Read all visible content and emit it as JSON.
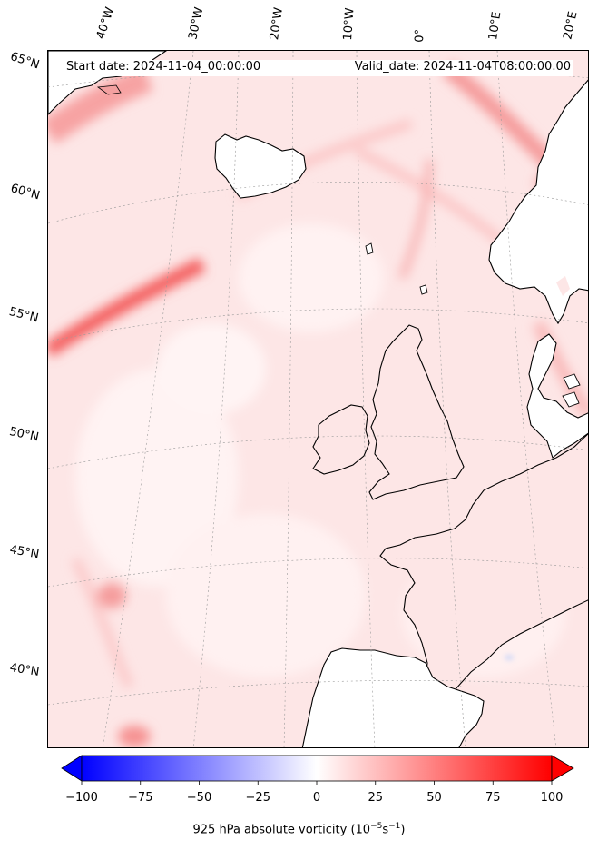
{
  "header": {
    "start_date": "Start date: 2024-11-04_00:00:00",
    "valid_date": "Valid_date: 2024-11-04T08:00:00.00"
  },
  "latitude_labels": [
    "65°N",
    "60°N",
    "55°N",
    "50°N",
    "45°N",
    "40°N"
  ],
  "longitude_labels": [
    "40°W",
    "30°W",
    "20°W",
    "10°W",
    "0°",
    "10°E",
    "20°E"
  ],
  "colorbar": {
    "label": "925 hPa absolute vorticity (10",
    "label_exp": "−5",
    "label_unit": "s",
    "label_exp2": "−1",
    "label_close": ")",
    "ticks": [
      "−100",
      "−75",
      "−50",
      "−25",
      "0",
      "25",
      "50",
      "75",
      "100"
    ],
    "tick_values": [
      -100,
      -75,
      -50,
      -25,
      0,
      25,
      50,
      75,
      100
    ],
    "range": [
      -100,
      100
    ],
    "extend": "both",
    "colormap": "bwr",
    "colors": {
      "min": "#0000ff",
      "mid": "#ffffff",
      "max": "#ff0000"
    }
  },
  "map": {
    "land_color": "#ffffff",
    "coastline_color": "#000000",
    "gridline_style": "dotted"
  }
}
